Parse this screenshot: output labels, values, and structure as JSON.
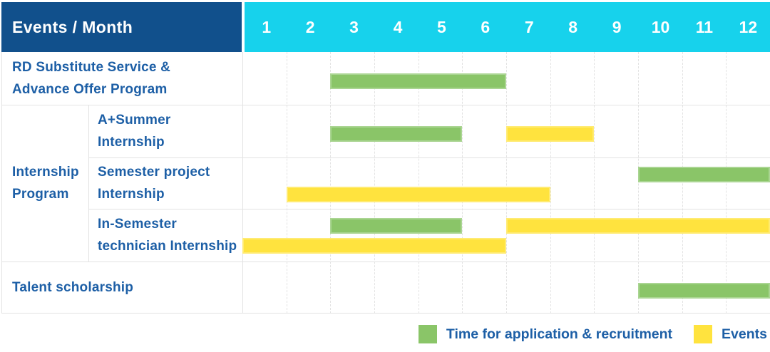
{
  "header": {
    "title": "Events / Month",
    "months": [
      "1",
      "2",
      "3",
      "4",
      "5",
      "6",
      "7",
      "8",
      "9",
      "10",
      "11",
      "12"
    ]
  },
  "group": {
    "label": "Internship Program"
  },
  "rows": [
    {
      "label": "RD Substitute Service &\nAdvance Offer Program",
      "bars": [
        {
          "type": "recruitment",
          "start": 3,
          "end": 6,
          "lane": "mid"
        }
      ]
    },
    {
      "label": "A+Summer\nInternship",
      "bars": [
        {
          "type": "recruitment",
          "start": 3,
          "end": 5,
          "lane": "mid"
        },
        {
          "type": "event",
          "start": 7,
          "end": 8,
          "lane": "mid"
        }
      ]
    },
    {
      "label": "Semester project\nInternship",
      "bars": [
        {
          "type": "recruitment",
          "start": 10,
          "end": 12,
          "lane": "top"
        },
        {
          "type": "event",
          "start": 2,
          "end": 7,
          "lane": "bottom"
        }
      ]
    },
    {
      "label": "In-Semester\ntechnician Internship",
      "bars": [
        {
          "type": "recruitment",
          "start": 3,
          "end": 5,
          "lane": "top"
        },
        {
          "type": "event",
          "start": 7,
          "end": 12,
          "lane": "top"
        },
        {
          "type": "event",
          "start": 1,
          "end": 6,
          "lane": "bottom"
        }
      ]
    },
    {
      "label": "Talent scholarship",
      "bars": [
        {
          "type": "recruitment",
          "start": 10,
          "end": 12,
          "lane": "mid"
        }
      ]
    }
  ],
  "legend": [
    {
      "key": "recruitment",
      "label": "Time for application & recruitment",
      "color": "#8ac568"
    },
    {
      "key": "event",
      "label": "Events",
      "color": "#ffe33e"
    }
  ],
  "colors": {
    "recruitment": "#8ac568",
    "event": "#ffe33e",
    "header_bg": "#11508c",
    "months_bg": "#17d2ec",
    "label_text": "#1d5fa6",
    "grid_line": "#e3e3e3"
  },
  "chart_data": {
    "type": "bar",
    "subtype": "gantt-timeline",
    "title": "Events / Month",
    "xlabel": "Month",
    "x_ticks": [
      1,
      2,
      3,
      4,
      5,
      6,
      7,
      8,
      9,
      10,
      11,
      12
    ],
    "xlim": [
      1,
      12
    ],
    "grid": true,
    "legend_position": "bottom-right",
    "legend_entries": [
      "Time for application & recruitment",
      "Events"
    ],
    "tasks": [
      {
        "row": "RD Substitute Service & Advance Offer Program",
        "group": null,
        "spans": [
          {
            "category": "Time for application & recruitment",
            "start_month": 3,
            "end_month": 6
          }
        ]
      },
      {
        "row": "A+Summer Internship",
        "group": "Internship Program",
        "spans": [
          {
            "category": "Time for application & recruitment",
            "start_month": 3,
            "end_month": 5
          },
          {
            "category": "Events",
            "start_month": 7,
            "end_month": 8
          }
        ]
      },
      {
        "row": "Semester project Internship",
        "group": "Internship Program",
        "spans": [
          {
            "category": "Time for application & recruitment",
            "start_month": 10,
            "end_month": 12
          },
          {
            "category": "Events",
            "start_month": 2,
            "end_month": 7
          }
        ]
      },
      {
        "row": "In-Semester technician Internship",
        "group": "Internship Program",
        "spans": [
          {
            "category": "Time for application & recruitment",
            "start_month": 3,
            "end_month": 5
          },
          {
            "category": "Events",
            "start_month": 7,
            "end_month": 12
          },
          {
            "category": "Events",
            "start_month": 1,
            "end_month": 6
          }
        ]
      },
      {
        "row": "Talent scholarship",
        "group": null,
        "spans": [
          {
            "category": "Time for application & recruitment",
            "start_month": 10,
            "end_month": 12
          }
        ]
      }
    ]
  }
}
